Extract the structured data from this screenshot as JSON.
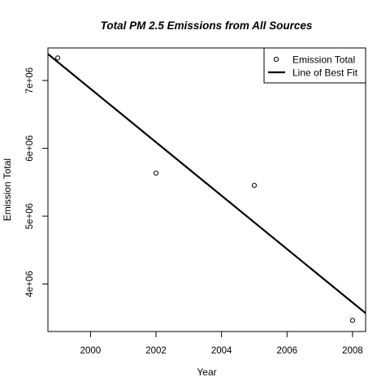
{
  "chart_data": {
    "type": "scatter",
    "title": "Total PM 2.5 Emissions from All Sources",
    "xlabel": "Year",
    "ylabel": "Emission Total",
    "xlim": [
      1998.7,
      2008.4
    ],
    "ylim": [
      3300000,
      7480000
    ],
    "x_ticks": [
      2000,
      2002,
      2004,
      2006,
      2008
    ],
    "x_tick_labels": [
      "2000",
      "2002",
      "2004",
      "2006",
      "2008"
    ],
    "y_ticks": [
      4000000,
      5000000,
      6000000,
      7000000
    ],
    "y_tick_labels": [
      "4e+06",
      "5e+06",
      "6e+06",
      "7e+06"
    ],
    "grid": false,
    "legend_position": "top-right",
    "series": [
      {
        "name": "Emission Total",
        "kind": "points",
        "color": "#000000",
        "x": [
          1999,
          2002,
          2005,
          2008
        ],
        "y": [
          7332000,
          5635000,
          5454000,
          3464000
        ]
      },
      {
        "name": "Line of Best Fit",
        "kind": "line",
        "color": "#000000",
        "x": [
          1998.7,
          2008.4
        ],
        "y": [
          7390000,
          3570000
        ]
      }
    ]
  }
}
